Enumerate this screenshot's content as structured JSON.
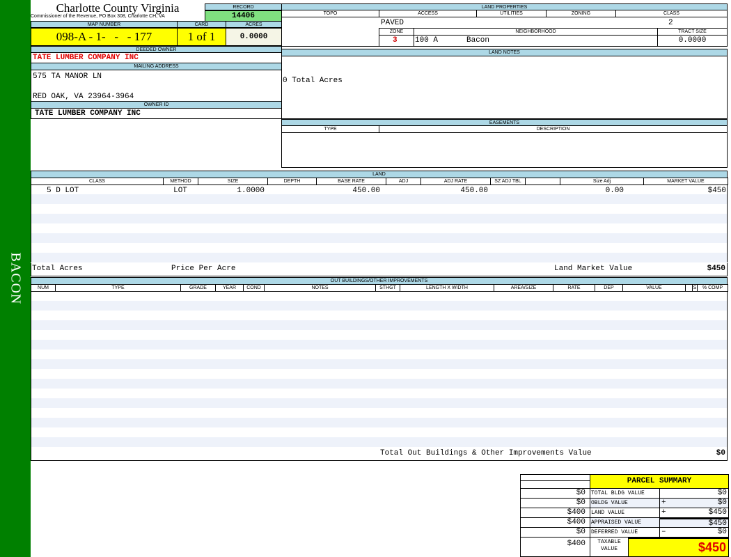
{
  "sidebar": {
    "label": "BACON",
    "color": "#008000"
  },
  "header": {
    "title": "Charlotte County Virginia",
    "subtitle": "Commissioner of the Revenue, PO Box 308, Charlotte CH, VA",
    "record_label": "RECORD",
    "record": "14406",
    "map_number_label": "MAP NUMBER",
    "map_number": "098-A - 1-   -   - 177",
    "card_label": "CARD",
    "card": "1 of 1",
    "acres_label": "ACRES",
    "acres": "0.0000"
  },
  "owner": {
    "deeded_label": "DEEDED OWNER",
    "deeded": "TATE LUMBER COMPANY INC",
    "mailing_label": "MAILING ADDRESS",
    "address1": "575 TA MANOR LN",
    "address2": "RED OAK, VA 23964-3964",
    "owner_id_label": "OWNER ID",
    "owner_id": "TATE LUMBER COMPANY INC"
  },
  "land_properties": {
    "title": "LAND PROPERTIES",
    "topo_label": "TOPO",
    "access_label": "ACCESS",
    "utilities_label": "UTILITIES",
    "zoning_label": "ZONING",
    "class_label": "CLASS",
    "access": "PAVED",
    "class": "2",
    "zone_label": "ZONE",
    "neighborhood_label": "NEIGHBORHOOD",
    "tract_label": "TRACT SIZE",
    "zone": "3",
    "neighborhood_code": "100 A",
    "neighborhood": "Bacon",
    "tract": "0.0000"
  },
  "land_notes": {
    "title": "LAND NOTES",
    "text": "0 Total Acres"
  },
  "easements": {
    "title": "EASEMENTS",
    "type_label": "TYPE",
    "description_label": "DESCRIPTION"
  },
  "land": {
    "title": "LAND",
    "columns": [
      "CLASS",
      "METHOD",
      "SIZE",
      "DEPTH",
      "BASE RATE",
      "ADJ",
      "ADJ RATE",
      "SZ ADJ TBL",
      "",
      "Size Adj",
      "MARKET VALUE"
    ],
    "row": {
      "class": "5 D LOT",
      "method": "LOT",
      "size": "1.0000",
      "base_rate": "450.00",
      "adj_rate": "450.00",
      "size_adj": "0.00",
      "market_value": "$450"
    },
    "total_acres_label": "Total Acres",
    "price_per_acre_label": "Price Per Acre",
    "market_value_label": "Land Market Value",
    "market_value": "$450"
  },
  "outbuildings": {
    "title": "OUT BUILDINGS/OTHER IMPROVEMENTS",
    "columns": [
      "NUM",
      "TYPE",
      "GRADE",
      "YEAR",
      "COND",
      "NOTES",
      "STHGT",
      "LENGTH X WIDTH",
      "AREA/SIZE",
      "RATE",
      "DEP",
      "VALUE",
      "",
      "S",
      "% COMP"
    ],
    "total_label": "Total Out Buildings & Other Improvements Value",
    "total": "$0"
  },
  "summary": {
    "title": "PARCEL SUMMARY",
    "rows": [
      {
        "prior": "$0",
        "label": "TOTAL BLDG VALUE",
        "op": "",
        "value": "$0"
      },
      {
        "prior": "$0",
        "label": "OBLDG VALUE",
        "op": "+",
        "value": "$0"
      },
      {
        "prior": "$400",
        "label": "LAND VALUE",
        "op": "+",
        "value": "$450"
      },
      {
        "prior": "$400",
        "label": "APPRAISED VALUE",
        "op": "",
        "value": "$450"
      },
      {
        "prior": "$0",
        "label": "DEFERRED VALUE",
        "op": "–",
        "value": "$0"
      }
    ],
    "taxable_prior": "$400",
    "taxable_label": "TAXABLE VALUE",
    "taxable": "$450"
  }
}
